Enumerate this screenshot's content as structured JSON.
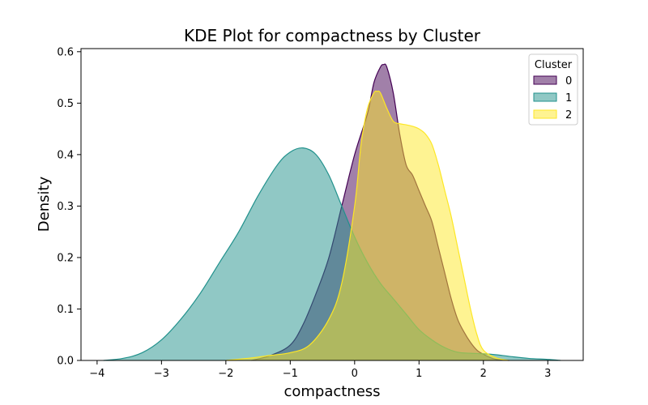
{
  "chart_data": {
    "type": "area",
    "title": "KDE Plot for compactness by Cluster",
    "xlabel": "compactness",
    "ylabel": "Density",
    "xlim": [
      -4.25,
      3.55
    ],
    "ylim": [
      0,
      0.6
    ],
    "xticks": [
      -4,
      -3,
      -2,
      -1,
      0,
      1,
      2,
      3
    ],
    "yticks": [
      0.0,
      0.1,
      0.2,
      0.3,
      0.4,
      0.5,
      0.6
    ],
    "grid": false,
    "legend": {
      "title": "Cluster",
      "placement": "top-right"
    },
    "series": [
      {
        "name": "0",
        "fill": "#440154",
        "stroke": "#440154",
        "x": [
          -1.6,
          -1.3,
          -1.0,
          -0.8,
          -0.6,
          -0.4,
          -0.2,
          0.0,
          0.2,
          0.3,
          0.4,
          0.45,
          0.5,
          0.6,
          0.7,
          0.8,
          0.9,
          1.0,
          1.1,
          1.2,
          1.3,
          1.4,
          1.5,
          1.6,
          1.7,
          1.8,
          1.9,
          2.0,
          2.1,
          2.2,
          2.4
        ],
        "y": [
          0.0,
          0.01,
          0.03,
          0.07,
          0.13,
          0.2,
          0.3,
          0.4,
          0.48,
          0.54,
          0.57,
          0.575,
          0.57,
          0.52,
          0.44,
          0.38,
          0.36,
          0.33,
          0.3,
          0.27,
          0.22,
          0.17,
          0.12,
          0.08,
          0.055,
          0.035,
          0.02,
          0.012,
          0.006,
          0.002,
          0.0
        ]
      },
      {
        "name": "1",
        "fill": "#21918c",
        "stroke": "#21918c",
        "x": [
          -3.9,
          -3.6,
          -3.3,
          -3.0,
          -2.7,
          -2.4,
          -2.1,
          -1.8,
          -1.5,
          -1.2,
          -1.0,
          -0.8,
          -0.6,
          -0.4,
          -0.2,
          0.0,
          0.2,
          0.4,
          0.6,
          0.8,
          1.0,
          1.2,
          1.4,
          1.6,
          1.8,
          2.0,
          2.2,
          2.4,
          2.7,
          3.0,
          3.2
        ],
        "y": [
          0.0,
          0.004,
          0.015,
          0.04,
          0.08,
          0.13,
          0.19,
          0.25,
          0.32,
          0.38,
          0.405,
          0.413,
          0.4,
          0.36,
          0.3,
          0.24,
          0.19,
          0.15,
          0.12,
          0.09,
          0.06,
          0.04,
          0.025,
          0.016,
          0.014,
          0.013,
          0.011,
          0.008,
          0.004,
          0.002,
          0.0
        ]
      },
      {
        "name": "2",
        "fill": "#fde725",
        "stroke": "#fde725",
        "x": [
          -2.0,
          -1.6,
          -1.3,
          -1.0,
          -0.7,
          -0.4,
          -0.2,
          0.0,
          0.1,
          0.2,
          0.3,
          0.35,
          0.4,
          0.5,
          0.6,
          0.7,
          0.8,
          0.9,
          1.0,
          1.1,
          1.2,
          1.3,
          1.4,
          1.5,
          1.6,
          1.7,
          1.8,
          1.9,
          2.0,
          2.2,
          2.4
        ],
        "y": [
          0.0,
          0.005,
          0.01,
          0.015,
          0.03,
          0.08,
          0.15,
          0.3,
          0.42,
          0.49,
          0.52,
          0.523,
          0.52,
          0.49,
          0.465,
          0.46,
          0.458,
          0.455,
          0.45,
          0.44,
          0.42,
          0.38,
          0.33,
          0.28,
          0.22,
          0.16,
          0.1,
          0.05,
          0.02,
          0.005,
          0.0
        ]
      }
    ]
  }
}
